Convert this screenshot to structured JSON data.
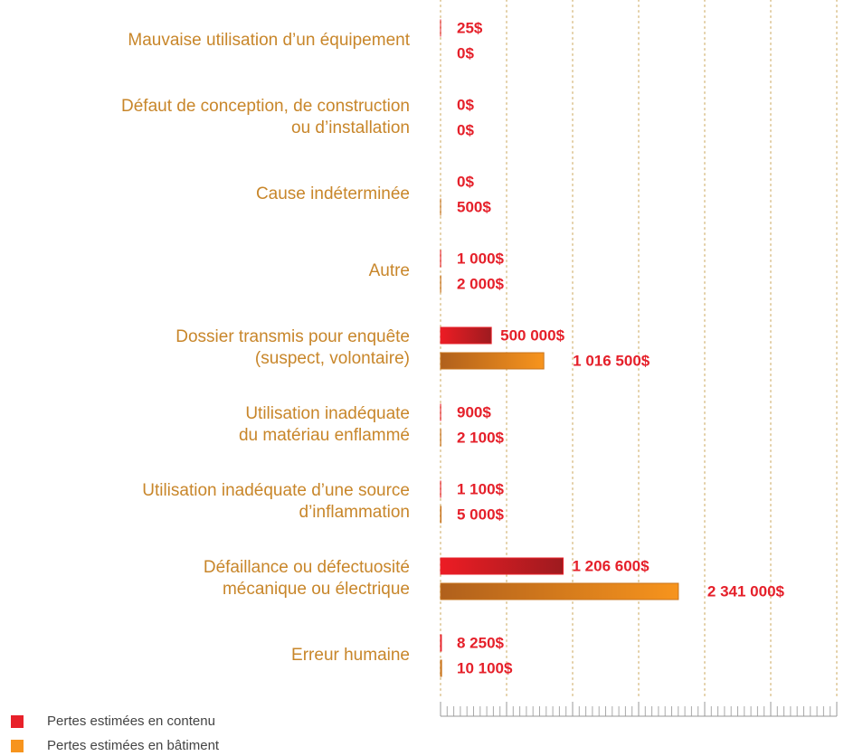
{
  "chart_data": {
    "type": "bar",
    "orientation": "horizontal",
    "categories": [
      "Mauvaise utilisation d’un équipement",
      "Défaut de conception, de construction\nou d’installation",
      "Cause indéterminée",
      "Autre",
      "Dossier transmis pour enquête\n(suspect, volontaire)",
      "Utilisation inadéquate\ndu matériau enflammé",
      "Utilisation inadéquate d’une source\nd’inflammation",
      "Défaillance ou défectuosité\nmécanique ou électrique",
      "Erreur humaine"
    ],
    "series": [
      {
        "name": "Pertes estimées en contenu",
        "color": "#e8212a",
        "values": [
          25,
          0,
          0,
          1000,
          500000,
          900,
          1100,
          1206600,
          8250
        ],
        "value_labels": [
          "25$",
          "0$",
          "0$",
          "1 000$",
          "500 000$",
          "900$",
          "1 100$",
          "1 206 600$",
          "8 250$"
        ]
      },
      {
        "name": "Pertes estimées en bâtiment",
        "color": "#f7941d",
        "values": [
          0,
          0,
          500,
          2000,
          1016500,
          2100,
          5000,
          2341000,
          10100
        ],
        "value_labels": [
          "0$",
          "0$",
          "500$",
          "2 000$",
          "1 016 500$",
          "2 100$",
          "5 000$",
          "2 341 000$",
          "10 100$"
        ]
      }
    ],
    "xlim": [
      0,
      3900000
    ],
    "xticks": [
      0,
      650000,
      1300000,
      1950000,
      2600000,
      3250000,
      3900000
    ],
    "grid": true
  }
}
